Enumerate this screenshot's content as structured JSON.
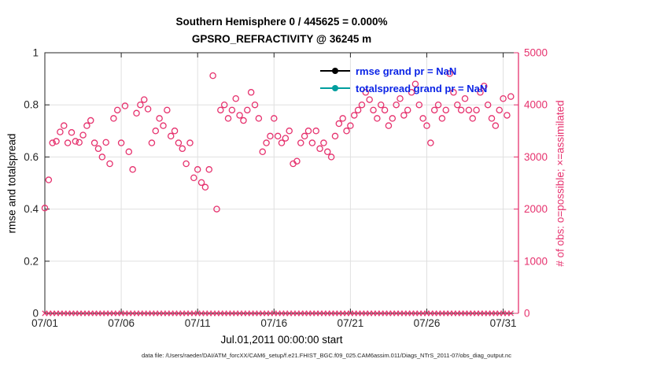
{
  "figure": {
    "title_line1": "Southern Hemisphere 0 / 445625 = 0.000%",
    "title_line2": "GPSRO_REFRACTIVITY @ 36245 m",
    "xlabel": "Jul.01,2011 00:00:00 start",
    "ylabel_left": "rmse and totalspread",
    "ylabel_right": "# of obs: o=possible; ×=assimilated",
    "footer": "data file: /Users/raeder/DAI/ATM_forcXX/CAM6_setup/f.e21.FHIST_BGC.f09_025.CAM6assim.011/Diags_NTrS_2011-07/obs_diag_output.nc"
  },
  "legend": [
    {
      "label": "rmse grand pr = NaN",
      "marker_color": "#000000"
    },
    {
      "label": "totalspread grand pr = NaN",
      "marker_color": "#009e9e"
    }
  ],
  "colors": {
    "obs_pink": "#e6326e",
    "axis_dark": "#262626",
    "grid": "#e0e0e0",
    "legend_text": "#0b24e6",
    "teal": "#009e9e",
    "black": "#000000"
  },
  "chart_data": {
    "type": "scatter",
    "title": "Southern Hemisphere 0 / 445625 = 0.000% — GPSRO_REFRACTIVITY @ 36245 m",
    "x_axis": {
      "label": "Jul.01,2011 00:00:00 start",
      "range_days": [
        0,
        31
      ],
      "tick_days": [
        0,
        5,
        10,
        15,
        20,
        25,
        30
      ],
      "tick_labels": [
        "07/01",
        "07/06",
        "07/11",
        "07/16",
        "07/21",
        "07/26",
        "07/31"
      ]
    },
    "left_axis": {
      "label": "rmse and totalspread",
      "range": [
        0,
        1
      ],
      "ticks": [
        0,
        0.2,
        0.4,
        0.6,
        0.8,
        1
      ],
      "tick_labels": [
        "0",
        "0.2",
        "0.4",
        "0.6",
        "0.8",
        "1"
      ]
    },
    "right_axis": {
      "label": "# of obs: o=possible; ×=assimilated",
      "range": [
        0,
        5000
      ],
      "ticks": [
        0,
        1000,
        2000,
        3000,
        4000,
        5000
      ],
      "tick_labels": [
        "0",
        "1000",
        "2000",
        "3000",
        "4000",
        "5000"
      ]
    },
    "grid": true,
    "legend_position": "top-right-inside",
    "series": [
      {
        "name": "possible",
        "axis": "right",
        "marker": "circle-open",
        "color": "#e6326e",
        "start_day": 0,
        "time_step_days": 0.25,
        "values": [
          2020,
          2560,
          3270,
          3300,
          3480,
          3600,
          3270,
          3470,
          3300,
          3280,
          3420,
          3600,
          3700,
          3270,
          3160,
          3000,
          3280,
          2870,
          3740,
          3900,
          3270,
          3980,
          3100,
          2760,
          3840,
          4000,
          4100,
          3920,
          3270,
          3500,
          3740,
          3600,
          3900,
          3400,
          3500,
          3270,
          3160,
          2870,
          3270,
          2600,
          2760,
          2510,
          2420,
          2760,
          4560,
          2000,
          3900,
          4000,
          3740,
          3900,
          4120,
          3800,
          3700,
          3900,
          4240,
          4000,
          3740,
          3100,
          3270,
          3400,
          3740,
          3400,
          3270,
          3360,
          3500,
          2870,
          2920,
          3270,
          3400,
          3500,
          3270,
          3500,
          3160,
          3270,
          3100,
          3000,
          3400,
          3640,
          3740,
          3500,
          3600,
          3800,
          3900,
          4000,
          4240,
          4100,
          3900,
          3740,
          4000,
          3900,
          3600,
          3740,
          4000,
          4120,
          3800,
          3900,
          4240,
          4400,
          4000,
          3740,
          3600,
          3270,
          3900,
          4000,
          3740,
          3900,
          4600,
          4240,
          4000,
          3900,
          4120,
          3900,
          3740,
          3900,
          4240,
          4360,
          4000,
          3740,
          3600,
          3900,
          4120,
          3800,
          4160
        ]
      },
      {
        "name": "assimilated",
        "axis": "right",
        "marker": "x",
        "color": "#e6326e",
        "start_day": 0,
        "time_step_days": 0.25,
        "constant_value": 0
      },
      {
        "name": "rmse",
        "axis": "left",
        "color": "#000000",
        "values": "NaN"
      },
      {
        "name": "totalspread",
        "axis": "left",
        "color": "#009e9e",
        "values": "NaN"
      }
    ]
  }
}
